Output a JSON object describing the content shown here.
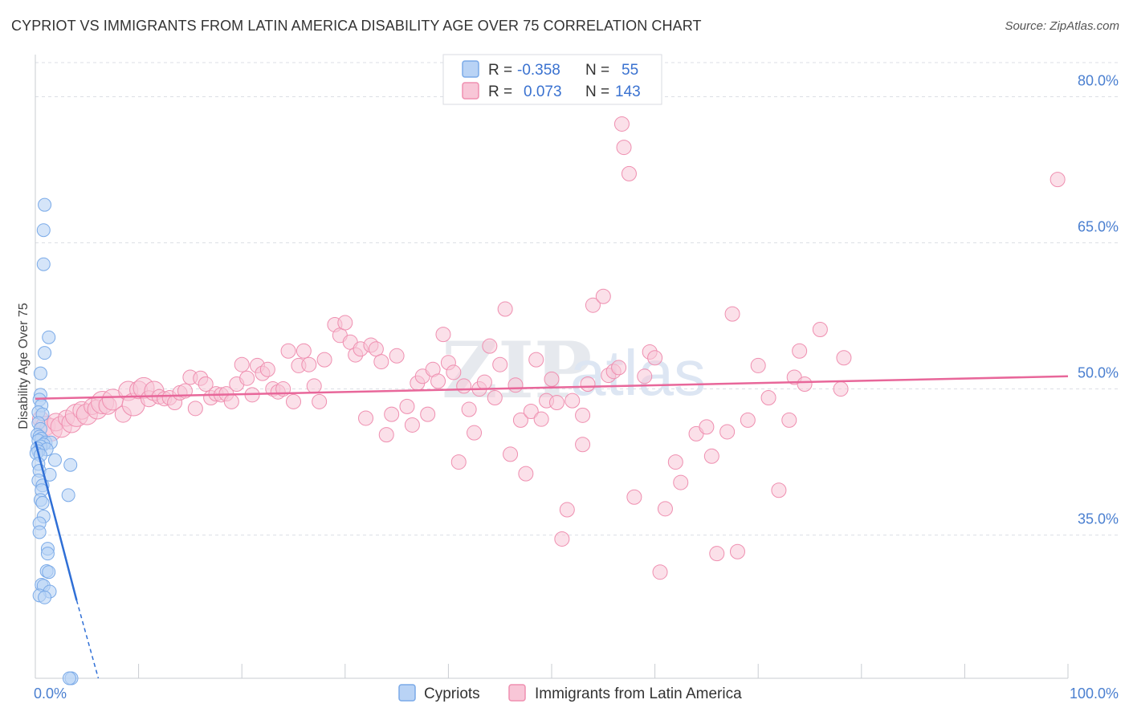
{
  "title": "CYPRIOT VS IMMIGRANTS FROM LATIN AMERICA DISABILITY AGE OVER 75 CORRELATION CHART",
  "source": "Source: ZipAtlas.com",
  "watermark": {
    "zip": "ZIP",
    "atlas": "atlas"
  },
  "colors": {
    "blue": "#7aaae8",
    "blue_fill": "#b9d3f5",
    "blue_line": "#2f6fd6",
    "pink": "#ef8fb0",
    "pink_fill": "#f8c6d7",
    "pink_line": "#e8679a",
    "grid": "#dcdfe5",
    "axis_label": "#4a7fd0"
  },
  "legend": {
    "rows": [
      {
        "r_label": "R =",
        "r_value": "-0.358",
        "n_label": "N =",
        "n_value": "55"
      },
      {
        "r_label": "R =",
        "r_value": "0.073",
        "n_label": "N =",
        "n_value": "143"
      }
    ]
  },
  "chart_data": {
    "type": "scatter",
    "title": "CYPRIOT VS IMMIGRANTS FROM LATIN AMERICA DISABILITY AGE OVER 75 CORRELATION CHART",
    "xlabel": "",
    "ylabel": "Disability Age Over 75",
    "xlim": [
      0,
      100
    ],
    "ylim": [
      20.3,
      83.5
    ],
    "x_tick_labels": [
      "0.0%",
      "100.0%"
    ],
    "y_ticks": [
      35,
      50,
      65,
      80
    ],
    "y_tick_labels": [
      "35.0%",
      "50.0%",
      "65.0%",
      "80.0%"
    ],
    "grid": true,
    "legend_position": "top-center",
    "series": [
      {
        "name": "Cypriots",
        "r": -0.358,
        "n": 55,
        "trend": {
          "x": [
            0,
            4
          ],
          "y": [
            44.6,
            28.3
          ]
        },
        "trend_dashed": {
          "x": [
            4,
            6.1
          ],
          "y": [
            28.3,
            20.3
          ]
        },
        "points": [
          [
            0.9,
            68.9
          ],
          [
            0.8,
            66.3
          ],
          [
            0.8,
            62.8
          ],
          [
            1.3,
            55.3
          ],
          [
            0.9,
            53.7
          ],
          [
            0.5,
            51.6
          ],
          [
            0.5,
            49.4
          ],
          [
            0.4,
            48.9
          ],
          [
            0.6,
            48.3
          ],
          [
            0.3,
            47.6
          ],
          [
            0.7,
            47.4
          ],
          [
            0.3,
            46.5
          ],
          [
            0.5,
            45.9
          ],
          [
            0.2,
            45.3
          ],
          [
            0.4,
            45.1
          ],
          [
            0.6,
            44.9
          ],
          [
            0.3,
            44.7
          ],
          [
            1.0,
            44.5
          ],
          [
            1.5,
            44.5
          ],
          [
            0.8,
            44.3
          ],
          [
            0.5,
            44.1
          ],
          [
            0.2,
            43.9
          ],
          [
            1.1,
            43.8
          ],
          [
            0.3,
            43.6
          ],
          [
            0.1,
            43.4
          ],
          [
            0.5,
            43.2
          ],
          [
            1.9,
            42.7
          ],
          [
            3.4,
            42.2
          ],
          [
            0.3,
            42.3
          ],
          [
            0.4,
            41.6
          ],
          [
            1.4,
            41.2
          ],
          [
            0.3,
            40.6
          ],
          [
            0.7,
            40.1
          ],
          [
            0.6,
            39.6
          ],
          [
            3.2,
            39.1
          ],
          [
            0.5,
            38.6
          ],
          [
            0.7,
            38.3
          ],
          [
            0.8,
            36.9
          ],
          [
            0.4,
            36.2
          ],
          [
            0.4,
            35.3
          ],
          [
            1.2,
            33.6
          ],
          [
            1.2,
            33.1
          ],
          [
            1.1,
            31.3
          ],
          [
            1.3,
            31.2
          ],
          [
            0.6,
            29.9
          ],
          [
            0.8,
            29.8
          ],
          [
            1.4,
            29.2
          ],
          [
            0.4,
            28.8
          ],
          [
            0.9,
            28.6
          ],
          [
            3.5,
            20.3
          ],
          [
            3.3,
            20.3
          ]
        ]
      },
      {
        "name": "Immigrants from Latin America",
        "r": 0.073,
        "n": 143,
        "trend": {
          "x": [
            0,
            100
          ],
          "y": [
            49.0,
            51.3
          ]
        },
        "points": [
          [
            0.5,
            46.9
          ],
          [
            1.0,
            46.2
          ],
          [
            1.5,
            45.8
          ],
          [
            2.0,
            46.6
          ],
          [
            2.5,
            46.1
          ],
          [
            3.0,
            47.0
          ],
          [
            3.5,
            46.5
          ],
          [
            4.0,
            47.3
          ],
          [
            4.5,
            47.8
          ],
          [
            5.0,
            47.4
          ],
          [
            5.5,
            48.2
          ],
          [
            6.0,
            47.9
          ],
          [
            6.5,
            48.6
          ],
          [
            7.0,
            48.3
          ],
          [
            7.5,
            48.9
          ],
          [
            8.5,
            47.4
          ],
          [
            9.0,
            49.8
          ],
          [
            9.5,
            48.4
          ],
          [
            10.0,
            49.9
          ],
          [
            10.5,
            50.1
          ],
          [
            11.0,
            49.0
          ],
          [
            11.5,
            49.8
          ],
          [
            12.0,
            49.2
          ],
          [
            12.5,
            49.0
          ],
          [
            13.0,
            49.1
          ],
          [
            13.5,
            48.6
          ],
          [
            14.0,
            49.6
          ],
          [
            14.5,
            49.8
          ],
          [
            15.0,
            51.2
          ],
          [
            15.5,
            48.0
          ],
          [
            16.0,
            51.1
          ],
          [
            16.5,
            50.5
          ],
          [
            17.0,
            49.1
          ],
          [
            17.5,
            49.5
          ],
          [
            18.0,
            49.4
          ],
          [
            18.5,
            49.5
          ],
          [
            19.0,
            48.7
          ],
          [
            19.5,
            50.5
          ],
          [
            20.0,
            52.5
          ],
          [
            20.5,
            51.1
          ],
          [
            21.0,
            49.4
          ],
          [
            21.5,
            52.4
          ],
          [
            22.0,
            51.6
          ],
          [
            22.5,
            52.0
          ],
          [
            23.0,
            50.0
          ],
          [
            23.5,
            49.7
          ],
          [
            24.0,
            50.0
          ],
          [
            24.5,
            53.9
          ],
          [
            25.0,
            48.7
          ],
          [
            25.5,
            52.4
          ],
          [
            26.0,
            53.9
          ],
          [
            26.5,
            52.5
          ],
          [
            27.0,
            50.3
          ],
          [
            27.5,
            48.7
          ],
          [
            28.0,
            53.0
          ],
          [
            29.0,
            56.6
          ],
          [
            29.5,
            55.5
          ],
          [
            30.0,
            56.8
          ],
          [
            30.5,
            54.8
          ],
          [
            31.0,
            53.5
          ],
          [
            31.5,
            54.1
          ],
          [
            32.0,
            47.0
          ],
          [
            32.5,
            54.5
          ],
          [
            33.0,
            54.1
          ],
          [
            33.5,
            52.8
          ],
          [
            34.0,
            45.3
          ],
          [
            34.5,
            47.4
          ],
          [
            35.0,
            53.4
          ],
          [
            36.0,
            48.2
          ],
          [
            36.5,
            46.3
          ],
          [
            37.0,
            50.6
          ],
          [
            37.5,
            51.3
          ],
          [
            38.0,
            47.4
          ],
          [
            38.5,
            52.0
          ],
          [
            39.0,
            50.8
          ],
          [
            39.5,
            55.6
          ],
          [
            40.0,
            52.7
          ],
          [
            40.5,
            51.7
          ],
          [
            41.0,
            42.5
          ],
          [
            41.5,
            50.3
          ],
          [
            42.0,
            47.9
          ],
          [
            42.5,
            45.5
          ],
          [
            43.0,
            50.0
          ],
          [
            43.5,
            50.7
          ],
          [
            44.0,
            54.4
          ],
          [
            44.5,
            49.1
          ],
          [
            45.0,
            52.5
          ],
          [
            45.5,
            58.2
          ],
          [
            46.0,
            43.3
          ],
          [
            46.5,
            50.4
          ],
          [
            47.0,
            46.8
          ],
          [
            47.5,
            41.3
          ],
          [
            48.0,
            47.7
          ],
          [
            48.5,
            53.0
          ],
          [
            49.0,
            46.9
          ],
          [
            49.5,
            48.8
          ],
          [
            50.0,
            51.0
          ],
          [
            50.5,
            48.6
          ],
          [
            51.0,
            34.6
          ],
          [
            51.5,
            37.6
          ],
          [
            52.0,
            48.8
          ],
          [
            53.0,
            44.3
          ],
          [
            53.0,
            47.3
          ],
          [
            53.5,
            50.5
          ],
          [
            54.0,
            58.6
          ],
          [
            55.0,
            59.5
          ],
          [
            55.5,
            51.4
          ],
          [
            56.0,
            51.8
          ],
          [
            56.5,
            52.2
          ],
          [
            57.0,
            74.8
          ],
          [
            57.5,
            72.1
          ],
          [
            58.0,
            38.9
          ],
          [
            59.0,
            51.3
          ],
          [
            59.5,
            53.8
          ],
          [
            60.0,
            53.2
          ],
          [
            60.5,
            31.2
          ],
          [
            61.0,
            37.7
          ],
          [
            62.0,
            42.5
          ],
          [
            62.5,
            40.4
          ],
          [
            64.0,
            45.4
          ],
          [
            65.0,
            46.1
          ],
          [
            65.5,
            43.1
          ],
          [
            66.0,
            33.1
          ],
          [
            67.0,
            45.6
          ],
          [
            67.5,
            57.7
          ],
          [
            68.0,
            33.3
          ],
          [
            69.0,
            46.8
          ],
          [
            70.0,
            52.4
          ],
          [
            71.0,
            49.1
          ],
          [
            72.0,
            39.6
          ],
          [
            73.0,
            46.8
          ],
          [
            73.5,
            51.2
          ],
          [
            74.0,
            53.9
          ],
          [
            74.5,
            50.5
          ],
          [
            76.0,
            56.1
          ],
          [
            78.0,
            50.0
          ],
          [
            78.3,
            53.2
          ],
          [
            99.0,
            71.5
          ],
          [
            56.8,
            77.2
          ]
        ]
      }
    ]
  }
}
